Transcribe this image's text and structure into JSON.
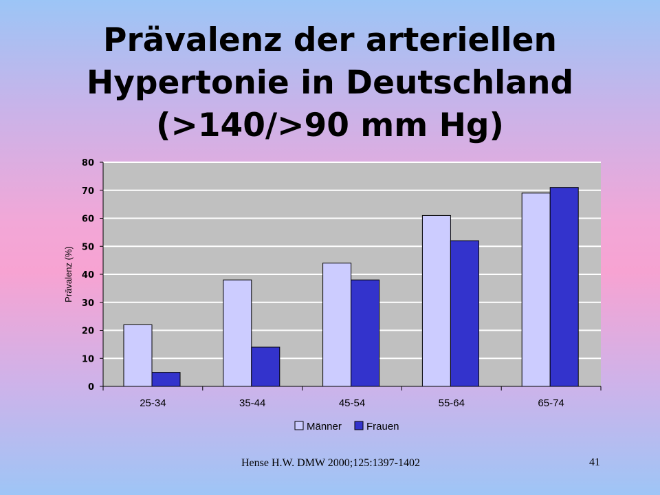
{
  "slide": {
    "title_lines": [
      "Prävalenz der arteriellen",
      "Hypertonie in Deutschland",
      "(>140/>90 mm Hg)"
    ],
    "source": "Hense H.W. DMW 2000;125:1397-1402",
    "page_number": "41"
  },
  "colors": {
    "plot_background": "#c0c0c0",
    "series_maenner": "#ccccff",
    "series_frauen": "#3333cc"
  },
  "chart_data": {
    "type": "bar",
    "title": "",
    "xlabel": "",
    "ylabel": "Prävalenz (%)",
    "categories": [
      "25-34",
      "35-44",
      "45-54",
      "55-64",
      "65-74"
    ],
    "series": [
      {
        "name": "Männer",
        "values": [
          22,
          38,
          44,
          61,
          69
        ]
      },
      {
        "name": "Frauen",
        "values": [
          5,
          14,
          38,
          52,
          71
        ]
      }
    ],
    "ylim": [
      0,
      80
    ],
    "yticks": [
      0,
      10,
      20,
      30,
      40,
      50,
      60,
      70,
      80
    ],
    "grid": true,
    "legend": "bottom"
  }
}
